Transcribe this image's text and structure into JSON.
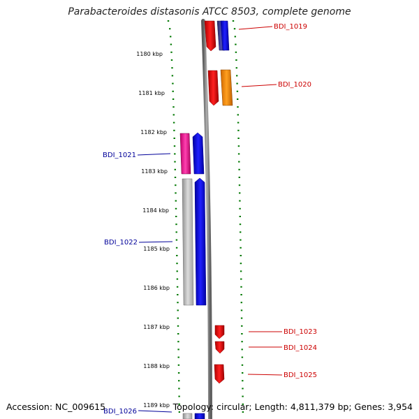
{
  "title": "Parabacteroides distasonis ATCC 8503, complete genome",
  "footer": {
    "accession": "Accession: NC_009615",
    "summary": "Topology: circular; Length: 4,811,379 bp; Genes: 3,954"
  },
  "scale": {
    "unit": "kbp",
    "ticks": [
      "1180 kbp",
      "1181 kbp",
      "1182 kbp",
      "1183 kbp",
      "1184 kbp",
      "1185 kbp",
      "1186 kbp",
      "1187 kbp",
      "1188 kbp",
      "1189 kbp"
    ]
  },
  "genes": {
    "BDI_1019": "BDI_1019",
    "BDI_1020": "BDI_1020",
    "BDI_1021": "BDI_1021",
    "BDI_1022": "BDI_1022",
    "BDI_1023": "BDI_1023",
    "BDI_1024": "BDI_1024",
    "BDI_1025": "BDI_1025",
    "BDI_1026": "BDI_1026"
  },
  "colors": {
    "label_right": "#cc0000",
    "label_left": "#000099",
    "ruler_dots": "#007700",
    "backbone": "#808080",
    "red": "#ff0000",
    "blue": "#0000ff",
    "navy": "#3a3a9a",
    "orange": "#ff8c00",
    "magenta": "#ff1a9a",
    "light_gray": "#c8c8c8"
  }
}
